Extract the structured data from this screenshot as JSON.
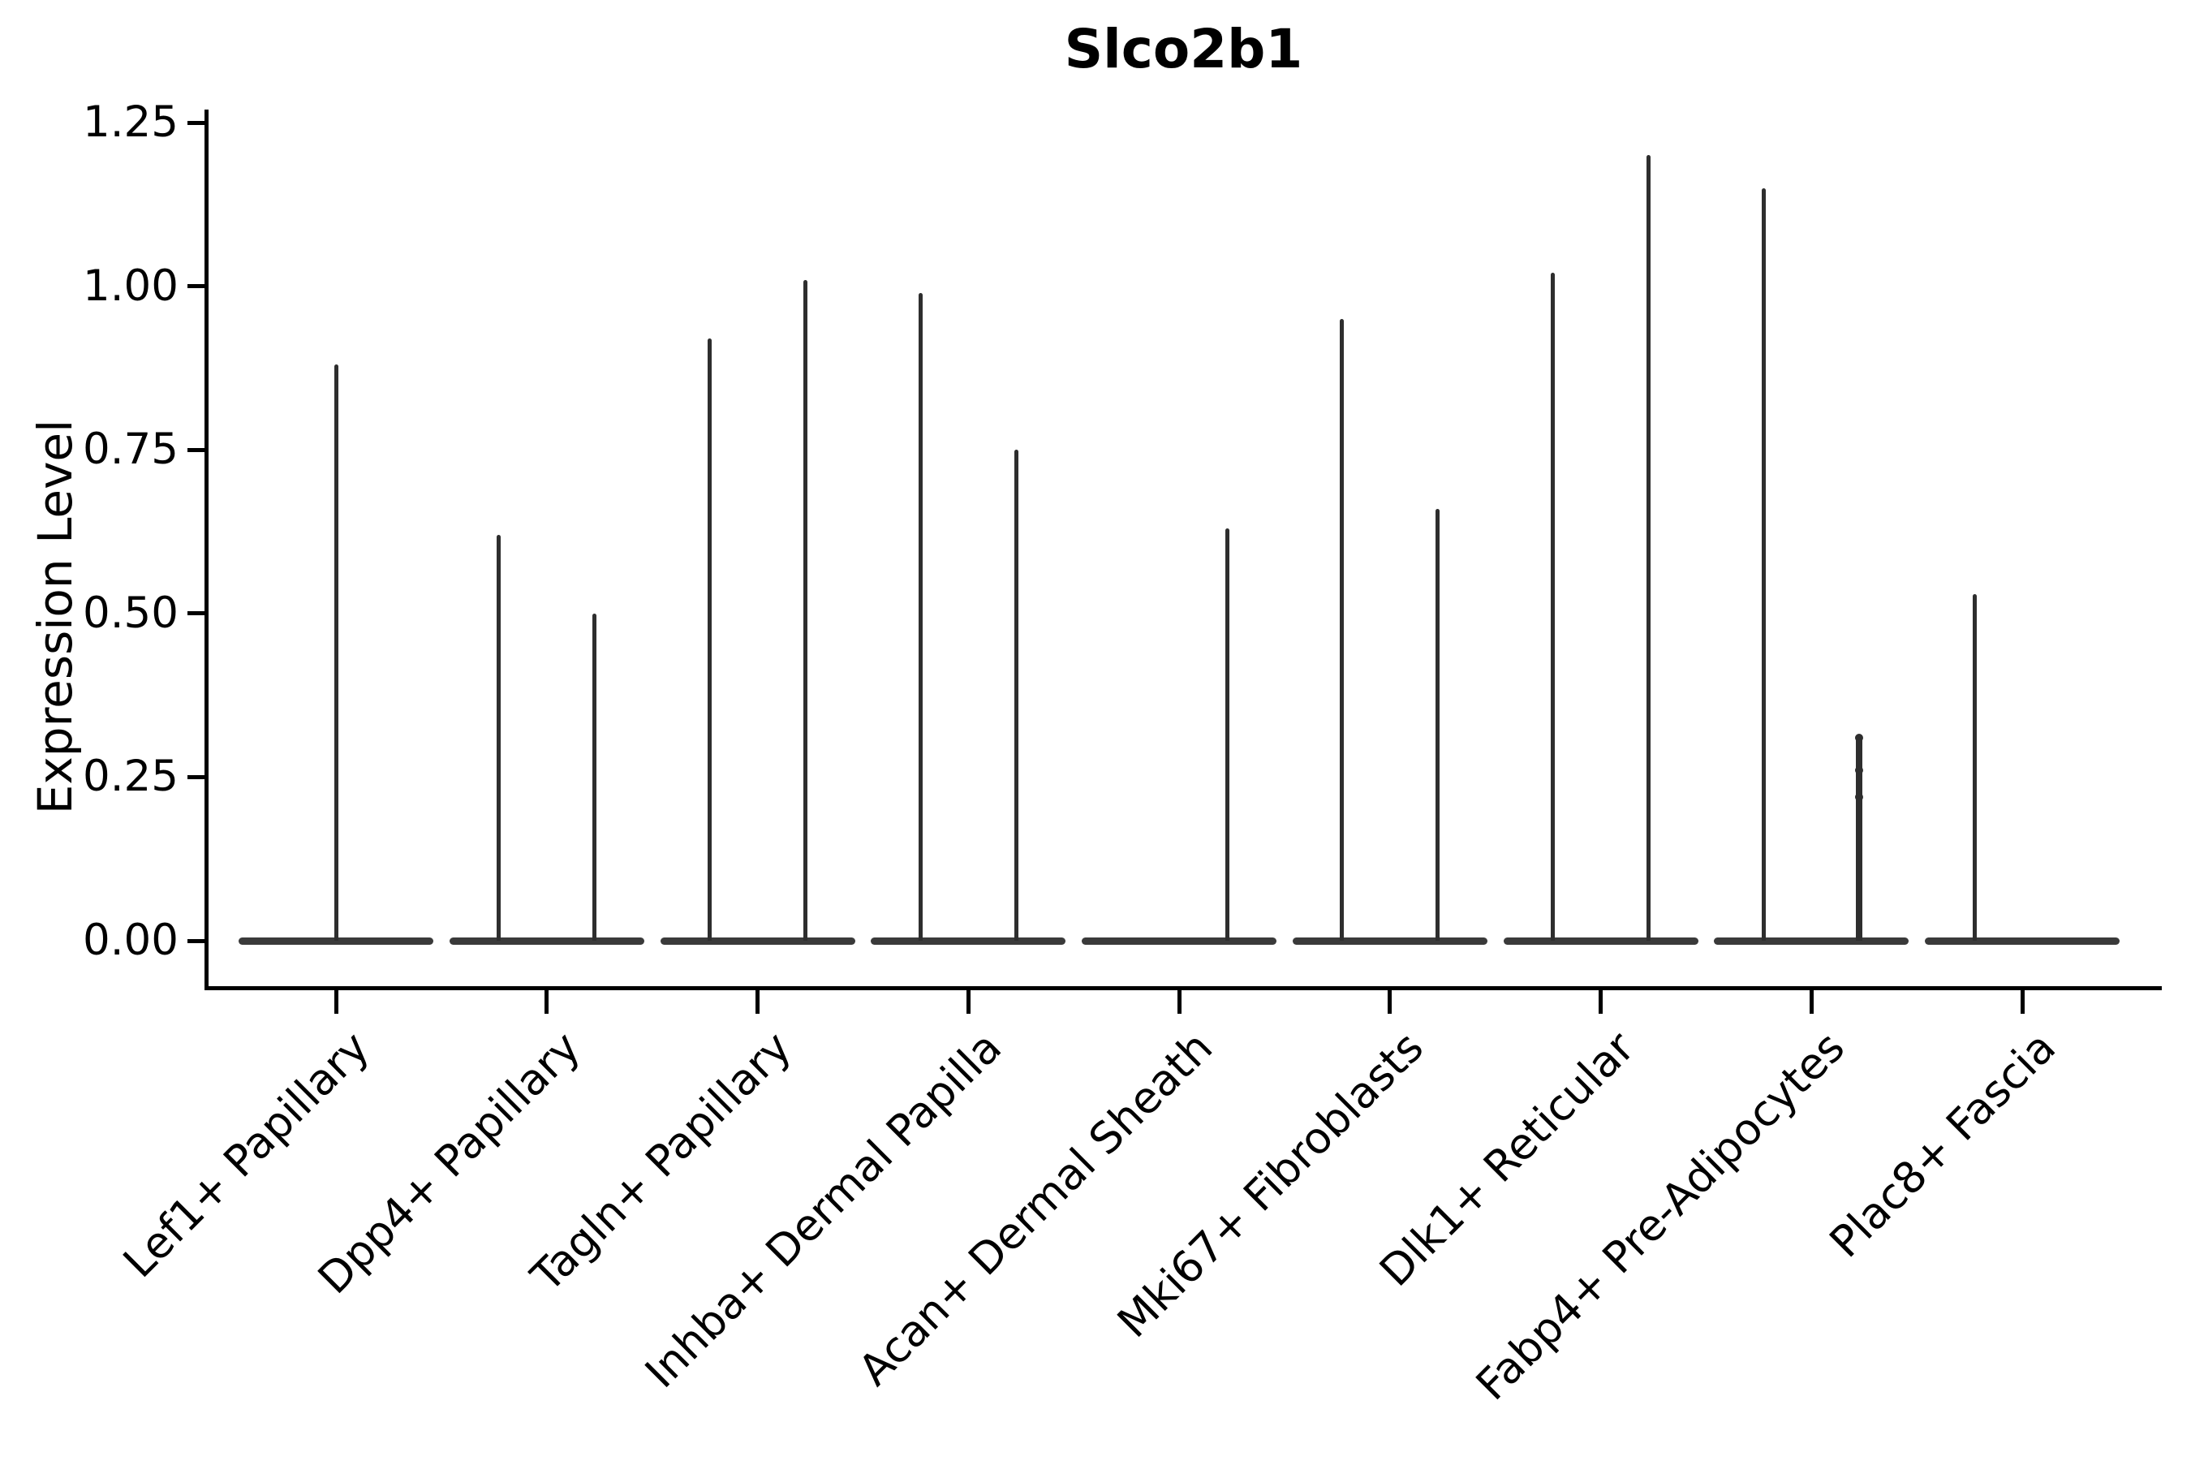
{
  "chart_data": {
    "type": "violin",
    "title": "Slco2b1",
    "ylabel": "Expression Level",
    "xlabel": "",
    "ylim": [
      0,
      1.25
    ],
    "ytick_values": [
      0,
      0.25,
      0.5,
      0.75,
      1.0,
      1.25
    ],
    "ytick_labels": [
      "0.00",
      "0.25",
      "0.50",
      "0.75",
      "1.00",
      "1.25"
    ],
    "grid": false,
    "legend_position": "none",
    "violin_color": "#2e2e2e",
    "axis_color": "#000000",
    "background_color": "#ffffff",
    "categories": [
      "Lef1+ Papillary",
      "Dpp4+ Papillary",
      "Tagln+ Papillary",
      "Inhba+ Dermal Papilla",
      "Acan+ Dermal Sheath",
      "Mki67+ Fibroblasts",
      "Dlk1+ Reticular",
      "Fabp4+ Pre-Adipocytes",
      "Plac8+ Fascia"
    ],
    "violins": [
      {
        "category": "Lef1+ Papillary",
        "base_at": 0,
        "spikes": [
          {
            "position": "center",
            "max": 0.88
          }
        ]
      },
      {
        "category": "Dpp4+ Papillary",
        "base_at": 0,
        "spikes": [
          {
            "position": "left",
            "max": 0.62
          },
          {
            "position": "right",
            "max": 0.5
          }
        ]
      },
      {
        "category": "Tagln+ Papillary",
        "base_at": 0,
        "spikes": [
          {
            "position": "left",
            "max": 0.92
          },
          {
            "position": "right",
            "max": 1.01
          }
        ]
      },
      {
        "category": "Inhba+ Dermal Papilla",
        "base_at": 0,
        "spikes": [
          {
            "position": "left",
            "max": 0.99
          },
          {
            "position": "right",
            "max": 0.75
          }
        ]
      },
      {
        "category": "Acan+ Dermal Sheath",
        "base_at": 0,
        "spikes": [
          {
            "position": "right",
            "max": 0.63
          }
        ]
      },
      {
        "category": "Mki67+ Fibroblasts",
        "base_at": 0,
        "spikes": [
          {
            "position": "left",
            "max": 0.95
          },
          {
            "position": "right",
            "max": 0.66
          }
        ]
      },
      {
        "category": "Dlk1+ Reticular",
        "base_at": 0,
        "spikes": [
          {
            "position": "left",
            "max": 1.02
          },
          {
            "position": "right",
            "max": 1.2
          }
        ]
      },
      {
        "category": "Fabp4+ Pre-Adipocytes",
        "base_at": 0,
        "spikes": [
          {
            "position": "left",
            "max": 1.15
          },
          {
            "position": "right",
            "max": 0.31,
            "thick": true,
            "points": [
              0.31,
              0.26,
              0.22
            ]
          }
        ]
      },
      {
        "category": "Plac8+ Fascia",
        "base_at": 0,
        "spikes": [
          {
            "position": "left",
            "max": 0.53
          }
        ]
      }
    ]
  }
}
